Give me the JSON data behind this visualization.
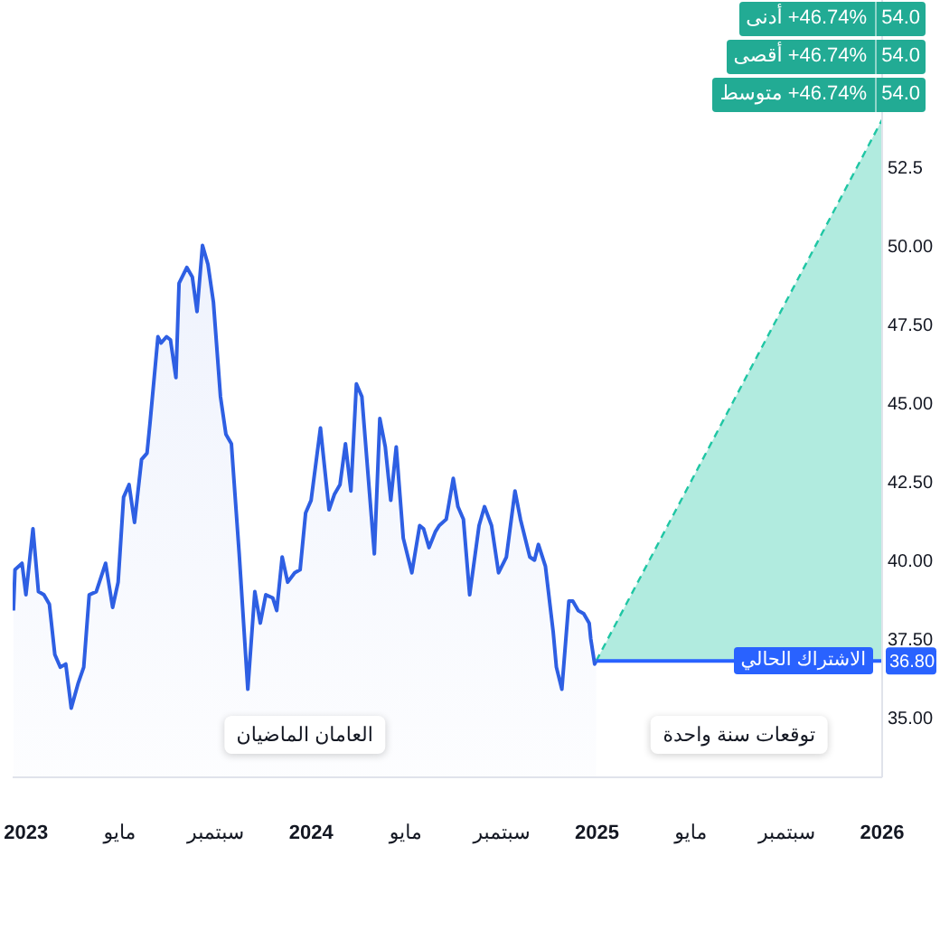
{
  "chart_data": {
    "type": "area",
    "series": [
      {
        "color": "#2e5fe3",
        "x": [
          "2022-12-16",
          "2022-12-18",
          "2022-12-27",
          "2023-01-01",
          "2023-01-10",
          "2023-01-17",
          "2023-01-24",
          "2023-01-31",
          "2023-02-07",
          "2023-02-14",
          "2023-02-21",
          "2023-02-28",
          "2023-03-09",
          "2023-03-16",
          "2023-03-23",
          "2023-04-01",
          "2023-04-13",
          "2023-04-22",
          "2023-04-29",
          "2023-05-06",
          "2023-05-13",
          "2023-05-20",
          "2023-05-29",
          "2023-06-05",
          "2023-06-09",
          "2023-06-19",
          "2023-06-23",
          "2023-06-30",
          "2023-07-05",
          "2023-07-12",
          "2023-07-16",
          "2023-07-26",
          "2023-08-02",
          "2023-08-08",
          "2023-08-15",
          "2023-08-22",
          "2023-08-29",
          "2023-09-07",
          "2023-09-14",
          "2023-09-21",
          "2023-10-01",
          "2023-10-12",
          "2023-10-21",
          "2023-10-28",
          "2023-11-04",
          "2023-11-13",
          "2023-11-18",
          "2023-11-25",
          "2023-12-02",
          "2023-12-11",
          "2023-12-18",
          "2023-12-25",
          "2024-01-01",
          "2024-01-13",
          "2024-01-24",
          "2024-01-31",
          "2024-02-07",
          "2024-02-14",
          "2024-02-21",
          "2024-02-28",
          "2024-03-06",
          "2024-03-22",
          "2024-03-29",
          "2024-04-05",
          "2024-04-12",
          "2024-04-19",
          "2024-04-28",
          "2024-05-05",
          "2024-05-09",
          "2024-05-19",
          "2024-05-24",
          "2024-05-31",
          "2024-06-08",
          "2024-06-13",
          "2024-06-22",
          "2024-07-01",
          "2024-07-07",
          "2024-07-14",
          "2024-07-22",
          "2024-08-03",
          "2024-08-10",
          "2024-08-19",
          "2024-08-28",
          "2024-09-07",
          "2024-09-18",
          "2024-09-25",
          "2024-10-07",
          "2024-10-13",
          "2024-10-18",
          "2024-10-27",
          "2024-11-06",
          "2024-11-10",
          "2024-11-17",
          "2024-11-26",
          "2024-12-01",
          "2024-12-08",
          "2024-12-15",
          "2024-12-22",
          "2024-12-24",
          "2024-12-29",
          "2024-12-31"
        ],
        "values": [
          38.4,
          39.7,
          39.9,
          38.9,
          41.0,
          39.0,
          38.9,
          38.6,
          37.0,
          36.6,
          36.7,
          35.3,
          36.1,
          36.6,
          38.9,
          39.0,
          39.9,
          38.5,
          39.3,
          42.0,
          42.4,
          41.2,
          43.2,
          43.4,
          44.4,
          47.1,
          46.9,
          47.1,
          47.0,
          45.8,
          48.8,
          49.3,
          49.0,
          47.9,
          50.0,
          49.4,
          48.2,
          45.2,
          44.0,
          43.7,
          40.2,
          35.9,
          39.0,
          38.0,
          38.9,
          38.8,
          38.4,
          40.1,
          39.3,
          39.6,
          39.7,
          41.5,
          41.9,
          44.2,
          41.6,
          42.1,
          42.4,
          43.7,
          42.2,
          45.6,
          45.2,
          40.2,
          44.5,
          43.6,
          41.9,
          43.6,
          40.7,
          40.0,
          39.6,
          41.1,
          41.0,
          40.4,
          40.9,
          41.1,
          41.3,
          42.6,
          41.7,
          41.3,
          38.9,
          41.1,
          41.7,
          41.1,
          39.6,
          40.1,
          42.2,
          41.3,
          40.1,
          40.0,
          40.5,
          39.8,
          37.7,
          36.6,
          35.9,
          38.7,
          38.7,
          38.4,
          38.3,
          38.0,
          37.5,
          36.7,
          36.8
        ]
      },
      {
        "type": "line",
        "color": "#1fc6a4",
        "line_style": "dashed",
        "x": [
          "2024-12-31",
          "2026-01-01"
        ],
        "values": [
          36.8,
          54.0
        ],
        "lower": [
          36.8,
          36.8
        ],
        "upper": [
          36.8,
          54.0
        ]
      }
    ],
    "xlim": [
      "2022-12-15",
      "2026-01-01"
    ],
    "xticks": [
      {
        "value": "2023-01-01",
        "label": "2023"
      },
      {
        "value": "2023-05-01",
        "label": "مايو"
      },
      {
        "value": "2023-09-01",
        "label": "سبتمبر"
      },
      {
        "value": "2024-01-01",
        "label": "2024"
      },
      {
        "value": "2024-05-01",
        "label": "مايو"
      },
      {
        "value": "2024-09-01",
        "label": "سبتمبر"
      },
      {
        "value": "2025-01-01",
        "label": "2025"
      },
      {
        "value": "2025-05-01",
        "label": "مايو"
      },
      {
        "value": "2025-09-01",
        "label": "سبتمبر"
      },
      {
        "value": "2026-01-01",
        "label": "2026"
      }
    ],
    "ylim": [
      33.1,
      57.8
    ],
    "yticks": [
      {
        "value": 35,
        "label": "35.00"
      },
      {
        "value": 36.8,
        "label": "36.80"
      },
      {
        "value": 37.5,
        "label": "37.50"
      },
      {
        "value": 40,
        "label": "40.00"
      },
      {
        "value": 42.5,
        "label": "42.50"
      },
      {
        "value": 45,
        "label": "45.00"
      },
      {
        "value": 47.5,
        "label": "47.50"
      },
      {
        "value": 50,
        "label": "50.00"
      },
      52.5
    ],
    "ref_lines": [
      {
        "axis": "y",
        "value": 36.8,
        "label": "الاشتراك الحالي",
        "color": "#2962ff"
      }
    ],
    "annotations": [
      "العامان الماضيان",
      "توقعات سنة واحدة",
      "+46.74% أدنى",
      "54.0",
      "+46.74% أقصى",
      "54.0",
      "+46.74% متوسط",
      "54.0"
    ]
  }
}
